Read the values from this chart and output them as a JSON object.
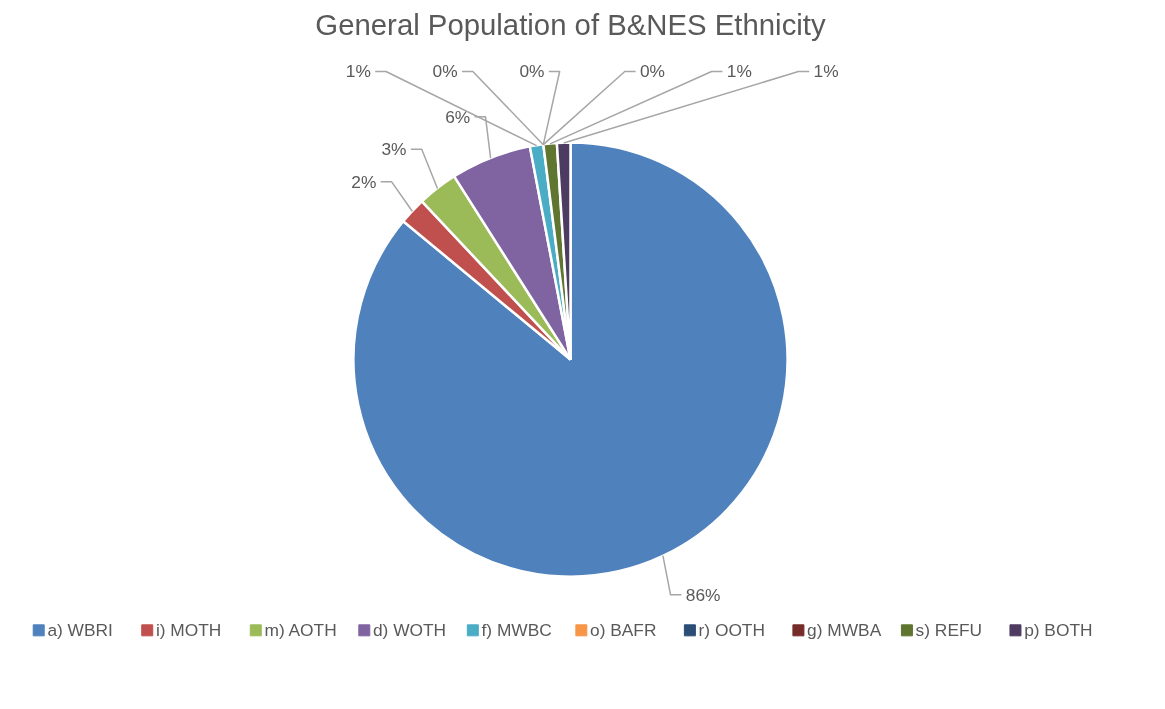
{
  "chart_data": {
    "type": "pie",
    "title": "General Population of B&NES Ethnicity",
    "categories": [
      "a) WBRI",
      "i) MOTH",
      "m) AOTH",
      "d) WOTH",
      "f) MWBC",
      "o) BAFR",
      "r) OOTH",
      "g) MWBA",
      "s) REFU",
      "p) BOTH"
    ],
    "values": [
      86,
      2,
      3,
      6,
      1,
      0,
      0,
      0,
      1,
      1
    ],
    "value_labels": [
      "86%",
      "2%",
      "3%",
      "6%",
      "1%",
      "0%",
      "0%",
      "0%",
      "1%",
      "1%"
    ],
    "colors": [
      "#4f81bd",
      "#c0504d",
      "#9bbb59",
      "#8064a2",
      "#4bacc6",
      "#f79646",
      "#2c4d75",
      "#772c2a",
      "#5f7530",
      "#4d3b62"
    ],
    "legend": "bottom"
  }
}
